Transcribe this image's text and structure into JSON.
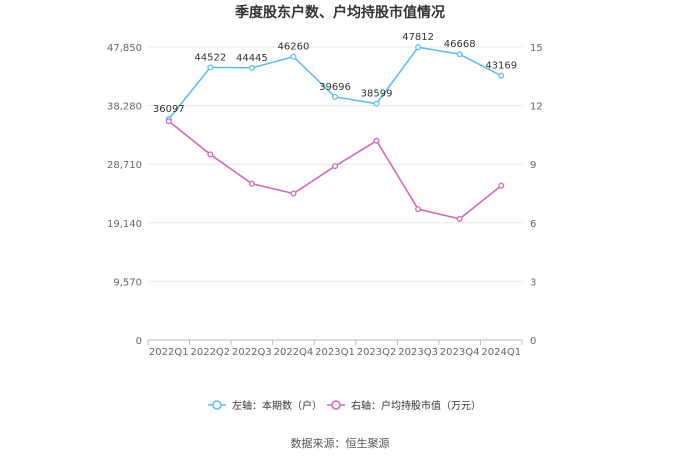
{
  "chart_data": {
    "type": "line",
    "title": "季度股东户数、户均持股市值情况",
    "source": "数据来源：恒生聚源",
    "categories": [
      "2022Q1",
      "2022Q2",
      "2022Q3",
      "2022Q4",
      "2023Q1",
      "2023Q2",
      "2023Q3",
      "2023Q4",
      "2024Q1"
    ],
    "left_axis": {
      "ticks": [
        0,
        9570,
        19140,
        28710,
        38280,
        47850
      ],
      "tick_labels": [
        "0",
        "9,570",
        "19,140",
        "28,710",
        "38,280",
        "47,850"
      ],
      "ylim": [
        0,
        47850
      ]
    },
    "right_axis": {
      "ticks": [
        0,
        3,
        6,
        9,
        12,
        15
      ],
      "tick_labels": [
        "0",
        "3",
        "6",
        "9",
        "12",
        "15"
      ],
      "ylim": [
        0,
        15
      ]
    },
    "series": [
      {
        "name": "左轴：本期数（户）",
        "axis": "left",
        "color": "#5bc0ee",
        "values": [
          36097,
          44522,
          44445,
          46260,
          39696,
          38599,
          47812,
          46668,
          43169
        ],
        "labels": [
          "36097",
          "44522",
          "44445",
          "46260",
          "39696",
          "38599",
          "47812",
          "46668",
          "43169"
        ]
      },
      {
        "name": "右轴：户均持股市值（万元）",
        "axis": "right",
        "color": "#d768b8",
        "values": [
          11.2,
          9.5,
          8.0,
          7.5,
          8.9,
          10.2,
          6.7,
          6.2,
          7.9
        ]
      }
    ],
    "grid": true,
    "legend_position": "bottom"
  }
}
